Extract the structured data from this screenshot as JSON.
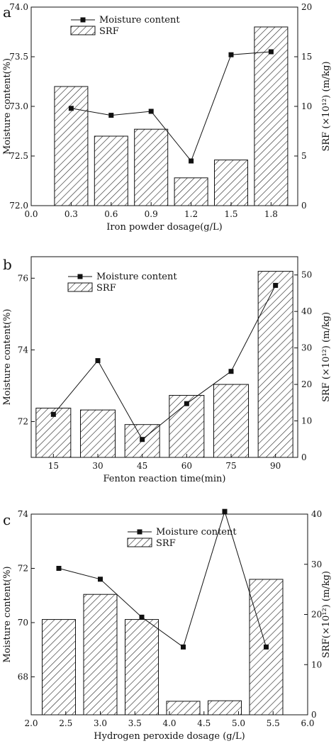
{
  "chart_data": [
    {
      "type": "bar",
      "panel_label": "a",
      "xlabel": "Iron powder dosage(g/L)",
      "ylabel": "Moisture content(%)",
      "y2label": "SRF (×10¹²)  (m/kg)",
      "x_ticks": [
        "0.0",
        "0.3",
        "0.6",
        "0.9",
        "1.2",
        "1.5",
        "1.8"
      ],
      "xlim": [
        0.0,
        2.0
      ],
      "ylim": [
        72.0,
        74.0
      ],
      "y_ticks": [
        "72.0",
        "72.5",
        "73.0",
        "73.5",
        "74.0"
      ],
      "y2lim": [
        0,
        20
      ],
      "y2_ticks": [
        "0",
        "5",
        "10",
        "15",
        "20"
      ],
      "legend": [
        "Moisture content",
        "SRF"
      ],
      "legend_position": "top-left",
      "series": [
        {
          "name": "Moisture content",
          "kind": "line",
          "axis": "left",
          "x": [
            0.3,
            0.6,
            0.9,
            1.2,
            1.5,
            1.8
          ],
          "values": [
            72.98,
            72.91,
            72.95,
            72.45,
            73.52,
            73.55
          ]
        },
        {
          "name": "SRF",
          "kind": "bar",
          "axis": "right",
          "x": [
            0.3,
            0.6,
            0.9,
            1.2,
            1.5,
            1.8
          ],
          "values": [
            12.0,
            7.0,
            7.7,
            2.8,
            4.6,
            18.0
          ]
        }
      ]
    },
    {
      "type": "bar",
      "panel_label": "b",
      "xlabel": "Fenton reaction time(min)",
      "ylabel": "Moisture content(%)",
      "y2label": "SRF (×10¹²)  (m/kg)",
      "x_ticks": [
        "15",
        "30",
        "45",
        "60",
        "75",
        "90"
      ],
      "ylim": [
        71.0,
        76.6
      ],
      "y_ticks": [
        "72",
        "74",
        "76"
      ],
      "y2lim": [
        0,
        55
      ],
      "y2_ticks": [
        "0",
        "10",
        "20",
        "30",
        "40",
        "50"
      ],
      "legend": [
        "Moisture content",
        "SRF"
      ],
      "legend_position": "top-left",
      "series": [
        {
          "name": "Moisture content",
          "kind": "line",
          "axis": "left",
          "x": [
            15,
            30,
            45,
            60,
            75,
            90
          ],
          "values": [
            72.2,
            73.7,
            71.5,
            72.5,
            73.4,
            75.8
          ]
        },
        {
          "name": "SRF",
          "kind": "bar",
          "axis": "right",
          "x": [
            15,
            30,
            45,
            60,
            75,
            90
          ],
          "values": [
            13.5,
            13.0,
            9.0,
            17.0,
            20.0,
            51.0
          ]
        }
      ]
    },
    {
      "type": "bar",
      "panel_label": "c",
      "xlabel": "Hydrogen peroxide dosage (g/L)",
      "ylabel": "Moisture content(%)",
      "y2label": "SRF(×10¹²)  (m/kg)",
      "x_ticks": [
        "2.0",
        "2.5",
        "3.0",
        "3.5",
        "4.0",
        "4.5",
        "5.0",
        "5.5",
        "6.0"
      ],
      "xlim": [
        2.0,
        6.0
      ],
      "ylim": [
        66.6,
        74.0
      ],
      "y_ticks": [
        "68",
        "70",
        "72",
        "74"
      ],
      "y2lim": [
        0,
        40
      ],
      "y2_ticks": [
        "0",
        "10",
        "20",
        "30",
        "40"
      ],
      "legend": [
        "Moisture content",
        "SRF"
      ],
      "legend_position": "top-center",
      "series": [
        {
          "name": "Moisture content",
          "kind": "line",
          "axis": "left",
          "x": [
            2.4,
            3.0,
            3.6,
            4.2,
            4.8,
            5.4
          ],
          "values": [
            72.0,
            71.6,
            70.2,
            69.1,
            74.1,
            69.1
          ]
        },
        {
          "name": "SRF",
          "kind": "bar",
          "axis": "right",
          "x": [
            2.4,
            3.0,
            3.6,
            4.2,
            4.8,
            5.4
          ],
          "values": [
            19.0,
            24.0,
            19.0,
            2.7,
            2.8,
            27.0
          ]
        }
      ]
    }
  ]
}
